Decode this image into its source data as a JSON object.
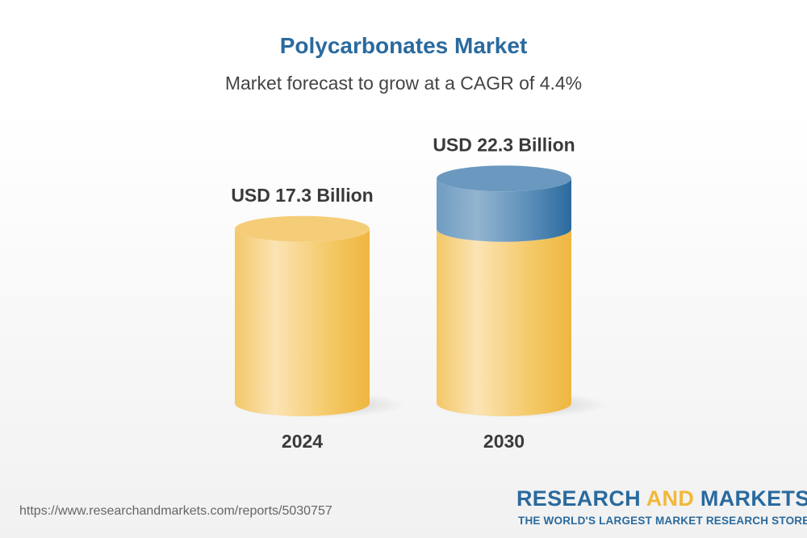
{
  "header": {
    "title": "Polycarbonates Market",
    "subtitle": "Market forecast to grow at a CAGR of 4.4%"
  },
  "chart_data": {
    "type": "bar",
    "style": "3d-cylinder",
    "title": "Polycarbonates Market",
    "subtitle": "Market forecast to grow at a CAGR of 4.4%",
    "categories": [
      "2024",
      "2030"
    ],
    "values": [
      17.3,
      22.3
    ],
    "unit": "USD Billion",
    "data_labels": [
      "USD 17.3 Billion",
      "USD 22.3 Billion"
    ],
    "colors": {
      "base": "#f2c25a",
      "growth": "#3e7fb0"
    },
    "ylim": [
      0,
      22.3
    ],
    "grid": false
  },
  "footer": {
    "url": "https://www.researchandmarkets.com/reports/5030757",
    "logo_part1": "RESEARCH ",
    "logo_part2": "AND",
    "logo_part3": " MARKETS",
    "tagline": "THE WORLD'S LARGEST MARKET RESEARCH STORE"
  }
}
